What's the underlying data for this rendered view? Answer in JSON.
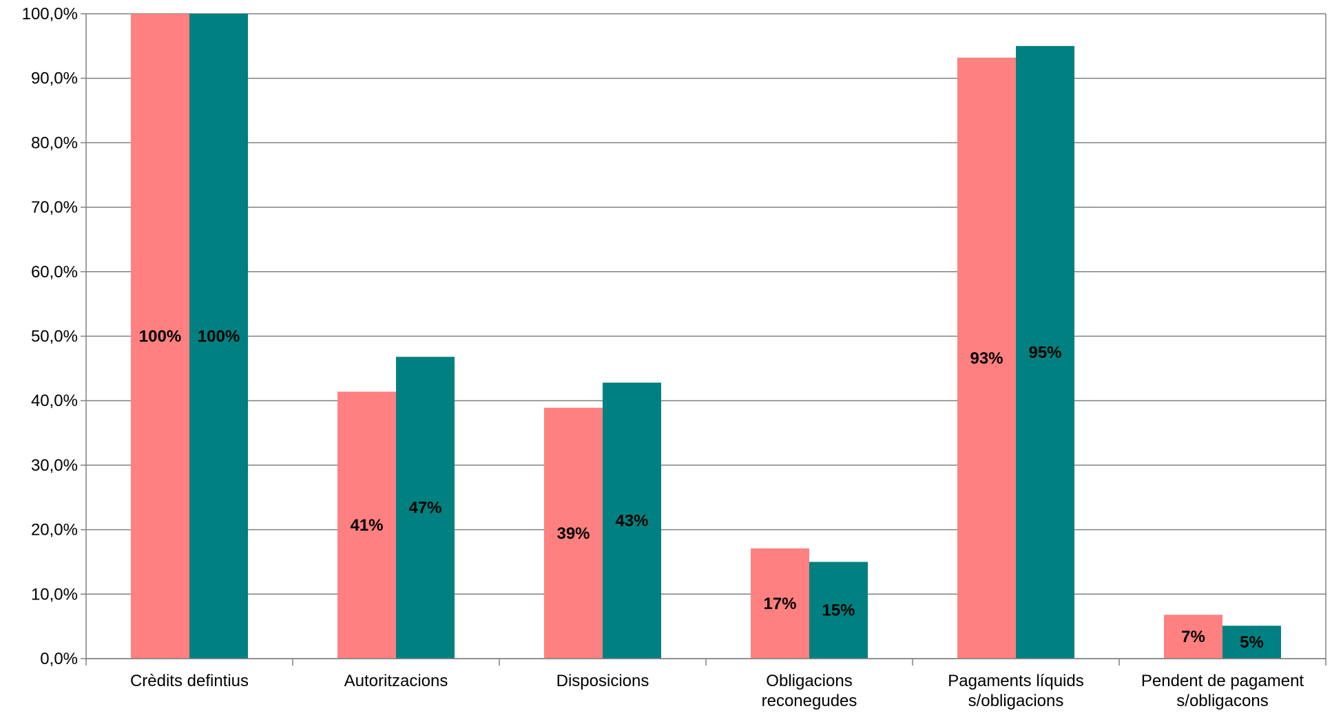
{
  "chart_data": {
    "type": "bar",
    "categories": [
      [
        "Crèdits defintius"
      ],
      [
        "Autoritzacions"
      ],
      [
        "Disposicions"
      ],
      [
        "Obligacions",
        "reconegudes"
      ],
      [
        "Pagaments líquids",
        "s/obligacions"
      ],
      [
        "Pendent de pagament",
        "s/obligacons"
      ]
    ],
    "series": [
      {
        "color": "#ff8080",
        "values": [
          100,
          41.4,
          38.9,
          17.1,
          93.2,
          6.8
        ],
        "labels": [
          "100%",
          "41%",
          "39%",
          "17%",
          "93%",
          "7%"
        ]
      },
      {
        "color": "#008080",
        "values": [
          100,
          46.8,
          42.8,
          15.0,
          95.0,
          5.1
        ],
        "labels": [
          "100%",
          "47%",
          "43%",
          "15%",
          "95%",
          "5%"
        ]
      }
    ],
    "ylim": [
      0,
      100
    ],
    "yticks": [
      "0,0%",
      "10,0%",
      "20,0%",
      "30,0%",
      "40,0%",
      "50,0%",
      "60,0%",
      "70,0%",
      "80,0%",
      "90,0%",
      "100,0%"
    ],
    "grid": true,
    "legend": "none"
  }
}
